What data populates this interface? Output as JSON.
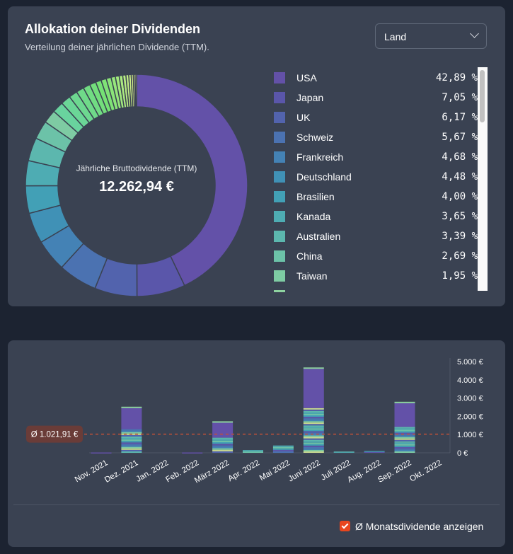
{
  "allocation": {
    "title": "Allokation deiner Dividenden",
    "subtitle": "Verteilung deiner jährlichen Dividende (TTM).",
    "group_select": "Land",
    "center_label": "Jährliche Bruttodividende (TTM)",
    "center_value": "12.262,94 €",
    "legend": [
      {
        "name": "USA",
        "pct": "42,89 %",
        "value": 42.89,
        "color": "#6351a8"
      },
      {
        "name": "Japan",
        "pct": "7,05 %",
        "value": 7.05,
        "color": "#5a56aa"
      },
      {
        "name": "UK",
        "pct": "6,17 %",
        "value": 6.17,
        "color": "#5263ad"
      },
      {
        "name": "Schweiz",
        "pct": "5,67 %",
        "value": 5.67,
        "color": "#4b72b1"
      },
      {
        "name": "Frankreich",
        "pct": "4,68 %",
        "value": 4.68,
        "color": "#4482b5"
      },
      {
        "name": "Deutschland",
        "pct": "4,48 %",
        "value": 4.48,
        "color": "#4091b6"
      },
      {
        "name": "Brasilien",
        "pct": "4,00 %",
        "value": 4.0,
        "color": "#42a0b6"
      },
      {
        "name": "Kanada",
        "pct": "3,65 %",
        "value": 3.65,
        "color": "#4eacb3"
      },
      {
        "name": "Australien",
        "pct": "3,39 %",
        "value": 3.39,
        "color": "#5cb7ae"
      },
      {
        "name": "China",
        "pct": "2,69 %",
        "value": 2.69,
        "color": "#6cc2a8"
      },
      {
        "name": "Taiwan",
        "pct": "1,95 %",
        "value": 1.95,
        "color": "#7ecba3"
      }
    ]
  },
  "chart_data": {
    "type": "bar",
    "stacked": true,
    "categories": [
      "Nov. 2021",
      "Dez. 2021",
      "Jan. 2022",
      "Feb. 2022",
      "März 2022",
      "Apr. 2022",
      "Mai 2022",
      "Juni 2022",
      "Juli 2022",
      "Aug. 2022",
      "Sep. 2022",
      "Okt. 2022"
    ],
    "totals": [
      20,
      2450,
      0,
      20,
      1650,
      150,
      400,
      4600,
      70,
      100,
      2720,
      0
    ],
    "usa": [
      20,
      1150,
      0,
      20,
      820,
      0,
      0,
      2150,
      0,
      0,
      1300,
      0
    ],
    "ylim": [
      0,
      5000
    ],
    "yticks": [
      "0 €",
      "1.000 €",
      "2.000 €",
      "3.000 €",
      "4.000 €",
      "5.000 €"
    ],
    "average": {
      "value": 1021.91,
      "label": "Ø 1.021,91 €",
      "color": "#c0503a"
    }
  },
  "toggle": {
    "label": "Ø Monatsdividende anzeigen",
    "checked": true
  }
}
